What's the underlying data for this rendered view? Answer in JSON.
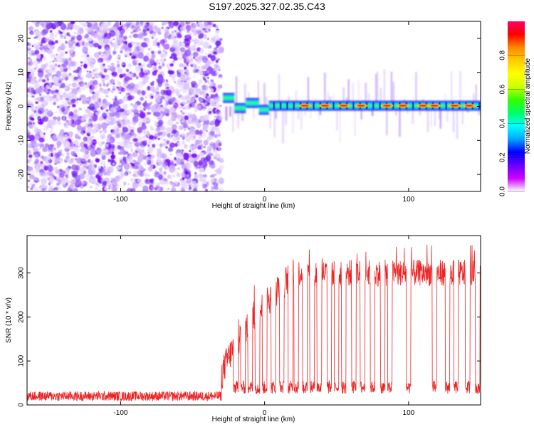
{
  "title": "S197.2025.327.02.35.C43",
  "chart_data": [
    {
      "type": "heatmap",
      "name": "spectrogram",
      "xlabel": "Height of straight line (km)",
      "ylabel": "Frequency (Hz)",
      "xlim": [
        -165,
        150
      ],
      "ylim": [
        -25,
        25
      ],
      "xticks": [
        -100,
        0,
        100
      ],
      "yticks": [
        -20,
        -10,
        0,
        10,
        20
      ],
      "colorbar": {
        "label": "Normalized spectral amplitude",
        "range": [
          0,
          1
        ],
        "ticks": [
          "0.0",
          "0.2",
          "0.4",
          "0.6",
          "0.8"
        ],
        "colors": [
          "#ffffff",
          "#cc00ff",
          "#6600ff",
          "#0000ff",
          "#00a8ff",
          "#00ffff",
          "#00ff66",
          "#33ff00",
          "#ccff00",
          "#ffff00",
          "#ffcc00",
          "#ff8800",
          "#ff0000",
          "#ff0066"
        ]
      },
      "noise_region_x": [
        -165,
        -30
      ],
      "carrier_segments": [
        {
          "x": [
            -29,
            -21
          ],
          "freq_hz": 2.5
        },
        {
          "x": [
            -21,
            -13
          ],
          "freq_hz": -0.5
        },
        {
          "x": [
            -13,
            -4
          ],
          "freq_hz": 1
        },
        {
          "x": [
            -4,
            3
          ],
          "freq_hz": -1
        },
        {
          "x": [
            3,
            150
          ],
          "freq_hz": 0.2
        }
      ],
      "hotspots_x": [
        28,
        42,
        55,
        67,
        85,
        96,
        110,
        118,
        132,
        142
      ]
    },
    {
      "type": "line",
      "name": "snr",
      "xlabel": "Height of straight line (km)",
      "ylabel": "SNR (10 * v/v)",
      "xlim": [
        -165,
        150
      ],
      "ylim": [
        0,
        385
      ],
      "xticks": [
        -100,
        0,
        100
      ],
      "yticks": [
        0,
        100,
        200,
        300
      ],
      "color": "#ee2222",
      "series": [
        {
          "name": "noise floor",
          "x": [
            -165,
            -30
          ],
          "level": 20
        },
        {
          "name": "ramp",
          "x": [
            -30,
            20
          ],
          "from": 60,
          "to": 300
        },
        {
          "name": "plateau",
          "x": [
            20,
            150
          ],
          "level": 300
        }
      ],
      "dropouts_x": [
        -20,
        -15,
        -10,
        -5,
        0,
        6,
        12,
        18,
        22,
        28,
        33,
        38,
        45,
        50,
        55,
        62,
        68,
        75,
        82,
        87,
        100,
        118,
        127,
        133,
        141,
        148
      ]
    }
  ]
}
